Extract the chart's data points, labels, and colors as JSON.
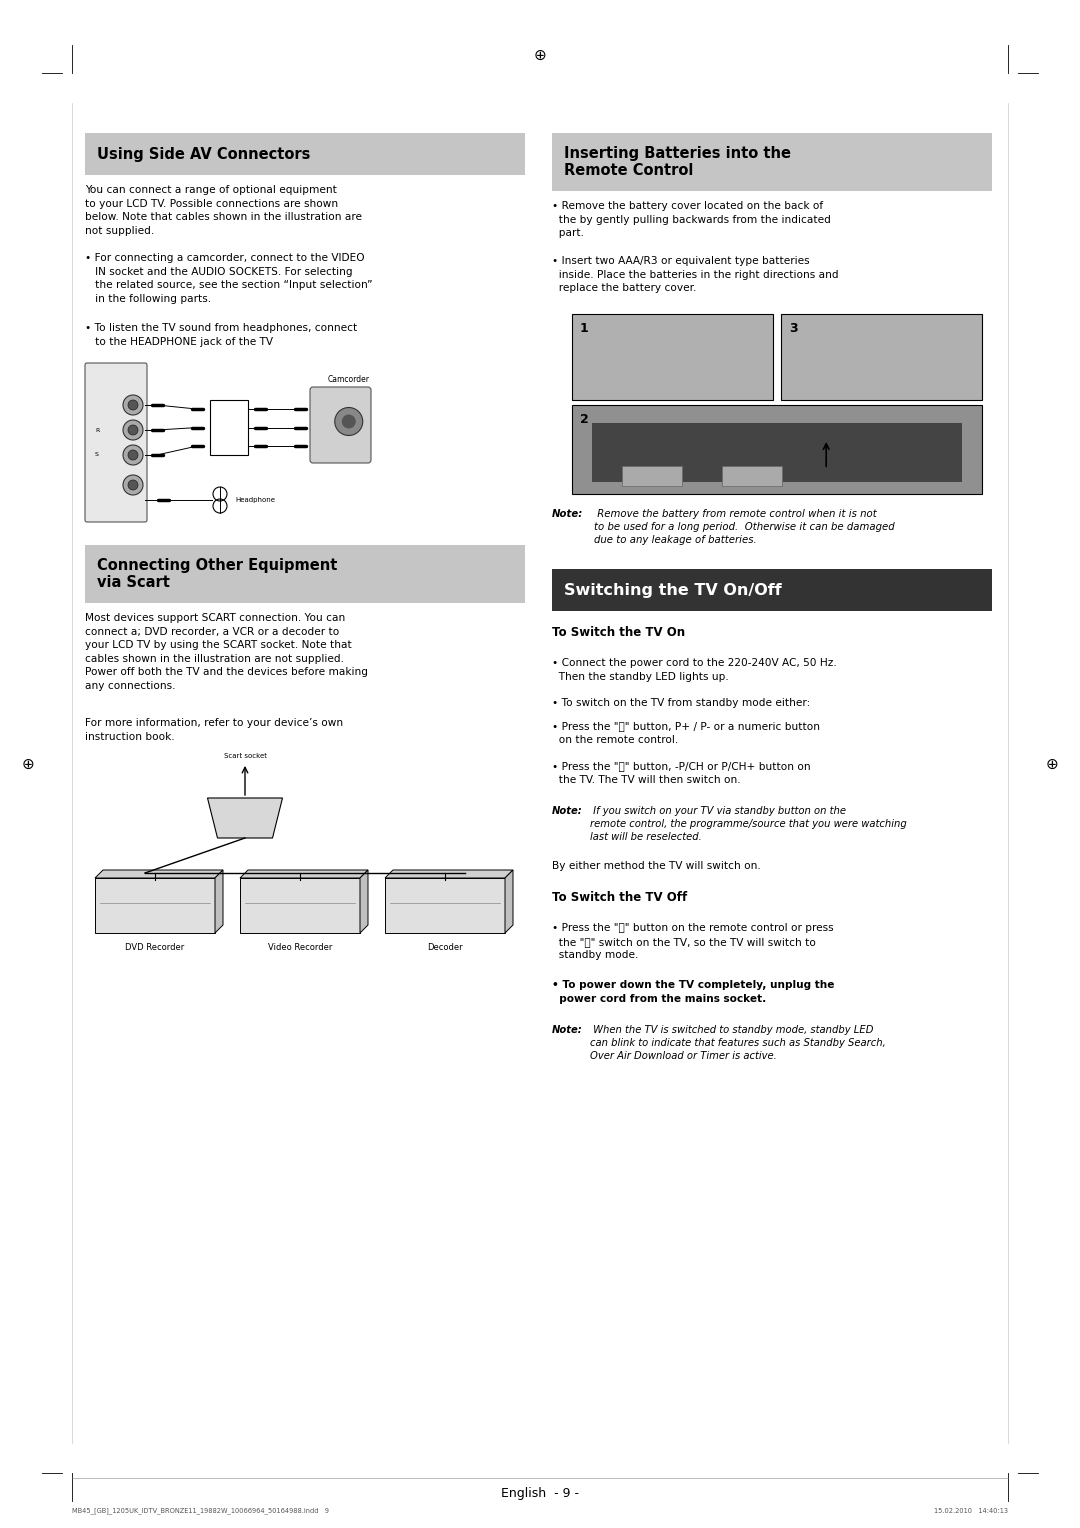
{
  "bg_color": "#ffffff",
  "light_header_bg": "#c8c8c8",
  "dark_header_bg": "#333333",
  "body_text_color": "#000000",
  "page_width": 10.8,
  "page_height": 15.28,
  "s1_title": "Using Side AV Connectors",
  "s1_para1": "You can connect a range of optional equipment\nto your LCD TV. Possible connections are shown\nbelow. Note that cables shown in the illustration are\nnot supplied.",
  "s1_bullet1": "• For connecting a camcorder, connect to the VIDEO\n   IN socket and the AUDIO SOCKETS. For selecting\n   the related source, see the section “Input selection”\n   in the following parts.",
  "s1_bullet2": "• To listen the TV sound from headphones, connect\n   to the HEADPHONE jack of the TV",
  "s2_title": "Connecting Other Equipment\nvia Scart",
  "s2_para1": "Most devices support SCART connection. You can\nconnect a; DVD recorder, a VCR or a decoder to\nyour LCD TV by using the SCART socket. Note that\ncables shown in the illustration are not supplied.\nPower off both the TV and the devices before making\nany connections.",
  "s2_para2": "For more information, refer to your device’s own\ninstruction book.",
  "s3_title": "Inserting Batteries into the\nRemote Control",
  "s3_bullet1": "• Remove the battery cover located on the back of\n  the by gently pulling backwards from the indicated\n  part.",
  "s3_bullet2": "• Insert two AAA/R3 or equivalent type batteries\n  inside. Place the batteries in the right directions and\n  replace the battery cover.",
  "s3_note": "Note: Remove the battery from remote control when it is not\nto be used for a long period.  Otherwise it can be damaged\ndue to any leakage of batteries.",
  "s4_title": "Switching the TV On/Off",
  "s4_sub1": "To Switch the TV On",
  "s4_b1_1": "• Connect the power cord to the 220-240V AC, 50 Hz.\n  Then the standby LED lights up.",
  "s4_b1_2": "• To switch on the TV from standby mode either:",
  "s4_b1_3": "• Press the \"⏻\" button, P+ / P- or a numeric button\n  on the remote control.",
  "s4_b1_4": "• Press the \"⏻\" button, -P/CH or P/CH+ button on\n  the TV. The TV will then switch on.",
  "s4_note1": "Note: If you switch on your TV via standby button on the\nremote control, the programme/source that you were watching\nlast will be reselected.",
  "s4_extra": "By either method the TV will switch on.",
  "s4_sub2": "To Switch the TV Off",
  "s4_b2_1": "• Press the \"⏻\" button on the remote control or press\n  the \"⏻\" switch on the TV, so the TV will switch to\n  standby mode.",
  "s4_b2_2_bold": "• To power down the TV completely, unplug the\n  power cord from the mains socket.",
  "s4_note2": "Note: When the TV is switched to standby mode, standby LED\ncan blink to indicate that features such as Standby Search,\nOver Air Download or Timer is active.",
  "footer_center": "English  - 9 -",
  "footer_left": "MB45_[GB]_1205UK_IDTV_BRONZE11_19882W_10066964_50164988.indd   9",
  "footer_right": "15.02.2010   14:40:13"
}
